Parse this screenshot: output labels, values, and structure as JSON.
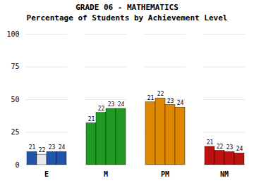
{
  "chart_data": {
    "type": "bar",
    "title": "GRADE 06 - MATHEMATICS",
    "subtitle": "Percentage of Students by Achievement Level",
    "categories": [
      "E",
      "M",
      "PM",
      "NM"
    ],
    "series": [
      {
        "name": "21",
        "values": [
          10,
          32,
          48,
          14
        ],
        "colors": [
          "#2255aa",
          "#229922",
          "#dd8800",
          "#bb1111"
        ]
      },
      {
        "name": "22",
        "values": [
          8,
          40,
          51,
          11
        ],
        "colors": [
          "#e8e8e8",
          "#229922",
          "#dd8800",
          "#bb1111"
        ]
      },
      {
        "name": "23",
        "values": [
          10,
          43,
          46,
          10
        ],
        "colors": [
          "#2255aa",
          "#229922",
          "#dd8800",
          "#bb1111"
        ]
      },
      {
        "name": "24",
        "values": [
          10,
          43,
          44,
          9
        ],
        "colors": [
          "#2255aa",
          "#229922",
          "#dd8800",
          "#bb1111"
        ]
      }
    ],
    "ylim": [
      0,
      100
    ],
    "yticks": [
      0,
      25,
      50,
      75,
      100
    ],
    "grid": true
  }
}
